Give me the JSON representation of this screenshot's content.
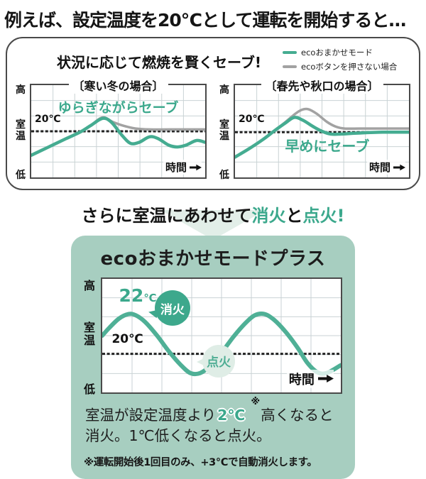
{
  "header": {
    "title": "例えば、設定温度を20℃として運転を開始すると…"
  },
  "save_box": {
    "title": "状況に応じて燃焼を賢くセーブ!",
    "legend": [
      {
        "label": "ecoおまかせモード",
        "color": "#45AC91"
      },
      {
        "label": "ecoボタンを押さない場合",
        "color": "#A2A2A2"
      }
    ]
  },
  "mid_heading": {
    "pre": "さらに室温にあわせて",
    "fire_off": "消火",
    "and": "と",
    "fire_on": "点火",
    "bang": "!"
  },
  "plus_box": {
    "title": "ecoおまかせモードプラス",
    "desc_pre": "室温が設定温度より",
    "desc_highlight": "2℃",
    "desc_ref": "※",
    "desc_post": "高くなると",
    "desc_line2": "消火。1℃低くなると点火。",
    "footnote": "※運転開始後1回目のみ、+3℃で自動消火します。"
  },
  "colors": {
    "accent": "#3BA88C",
    "accent_curve": "#4FB096",
    "gray_curve": "#A2A2A2",
    "box_bg": "#A7CEC0",
    "badge_solid": "#3DA88C",
    "badge_pale": "#DFEDE6",
    "grid": "#C9D2D4",
    "threshold": "#222222"
  },
  "chart_data": [
    {
      "type": "line",
      "title": "〔寒い冬の場合〕",
      "annotation": "ゆらぎながらセーブ",
      "ylabels": [
        "高",
        "室温",
        "低"
      ],
      "xlabel": "時間",
      "threshold": {
        "label": "20℃",
        "value": 50
      },
      "grid": {
        "cols": 8,
        "rows": 6
      },
      "ylim": [
        0,
        100
      ],
      "series": [
        {
          "name": "ecoボタンを押さない場合",
          "color": "#A2A2A2",
          "width": 3.5,
          "points": [
            [
              0,
              24
            ],
            [
              10,
              33
            ],
            [
              20,
              42
            ],
            [
              28,
              49
            ],
            [
              34,
              56
            ],
            [
              41,
              65
            ],
            [
              47,
              60
            ],
            [
              53,
              56
            ],
            [
              60,
              53
            ],
            [
              68,
              52
            ],
            [
              80,
              52
            ],
            [
              100,
              52
            ]
          ]
        },
        {
          "name": "ecoおまかせモード",
          "color": "#45AC91",
          "width": 4.5,
          "points": [
            [
              0,
              24
            ],
            [
              10,
              33
            ],
            [
              20,
              42
            ],
            [
              28,
              49
            ],
            [
              34,
              56
            ],
            [
              41,
              64
            ],
            [
              46,
              60
            ],
            [
              52,
              46
            ],
            [
              57,
              37
            ],
            [
              62,
              38
            ],
            [
              68,
              44
            ],
            [
              73,
              42
            ],
            [
              79,
              35
            ],
            [
              84,
              33
            ],
            [
              89,
              35
            ],
            [
              95,
              40
            ],
            [
              100,
              38
            ]
          ]
        }
      ]
    },
    {
      "type": "line",
      "title": "〔春先や秋口の場合〕",
      "annotation": "早めにセーブ",
      "ylabels": [
        "高",
        "室温",
        "低"
      ],
      "xlabel": "時間",
      "threshold": {
        "label": "20℃",
        "value": 49
      },
      "grid": {
        "cols": 8,
        "rows": 6
      },
      "ylim": [
        0,
        100
      ],
      "series": [
        {
          "name": "ecoボタンを押さない場合",
          "color": "#A2A2A2",
          "width": 3.5,
          "points": [
            [
              0,
              22
            ],
            [
              8,
              31
            ],
            [
              16,
              41
            ],
            [
              23,
              51
            ],
            [
              29,
              60
            ],
            [
              34,
              68
            ],
            [
              38,
              73
            ],
            [
              42,
              74
            ],
            [
              47,
              69
            ],
            [
              53,
              60
            ],
            [
              58,
              55
            ],
            [
              63,
              53
            ],
            [
              72,
              53
            ],
            [
              85,
              53
            ],
            [
              100,
              53
            ]
          ]
        },
        {
          "name": "ecoおまかせモード",
          "color": "#45AC91",
          "width": 4.5,
          "points": [
            [
              0,
              22
            ],
            [
              8,
              31
            ],
            [
              16,
              41
            ],
            [
              23,
              51
            ],
            [
              29,
              59
            ],
            [
              34,
              65
            ],
            [
              39,
              62
            ],
            [
              45,
              55
            ],
            [
              50,
              50
            ],
            [
              55,
              47
            ],
            [
              61,
              47
            ],
            [
              70,
              48
            ],
            [
              85,
              49
            ],
            [
              100,
              49
            ]
          ]
        }
      ]
    },
    {
      "type": "line",
      "title": "ecoおまかせモードプラス",
      "ylabels": [
        "高",
        "室温",
        "低"
      ],
      "xlabel": "時間",
      "threshold": {
        "label": "20℃",
        "value": 34
      },
      "peak_label": {
        "num": "22",
        "unit": "℃"
      },
      "badges": [
        {
          "label": "消火",
          "style": "solid"
        },
        {
          "label": "点火",
          "style": "pale"
        }
      ],
      "grid": {
        "cols": 8,
        "rows": 6
      },
      "ylim": [
        0,
        100
      ],
      "series": [
        {
          "name": "室温",
          "color": "#4FB096",
          "width": 6,
          "points": [
            [
              0,
              50
            ],
            [
              3,
              57
            ],
            [
              7,
              65
            ],
            [
              11,
              69
            ],
            [
              14,
              68
            ],
            [
              18,
              62
            ],
            [
              23,
              50
            ],
            [
              28,
              36
            ],
            [
              33,
              24
            ],
            [
              37,
              17
            ],
            [
              41,
              17
            ],
            [
              45,
              23
            ],
            [
              50,
              35
            ],
            [
              55,
              49
            ],
            [
              60,
              61
            ],
            [
              64,
              68
            ],
            [
              68,
              69
            ],
            [
              72,
              64
            ],
            [
              77,
              53
            ],
            [
              82,
              39
            ],
            [
              86,
              26
            ],
            [
              90,
              18
            ],
            [
              94,
              17
            ],
            [
              100,
              24
            ]
          ]
        }
      ]
    }
  ]
}
